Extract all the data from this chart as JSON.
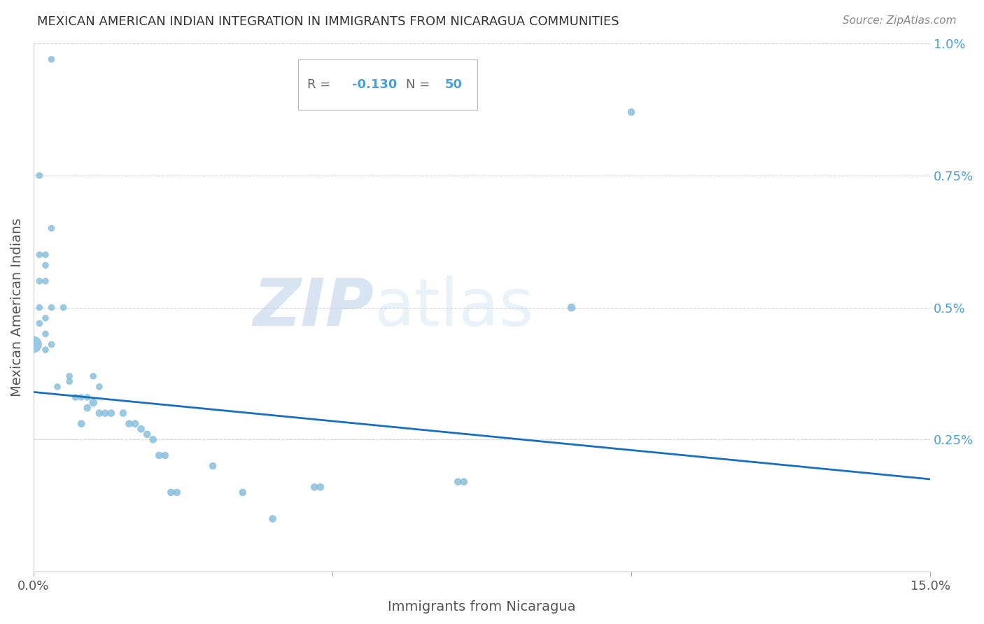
{
  "title": "MEXICAN AMERICAN INDIAN INTEGRATION IN IMMIGRANTS FROM NICARAGUA COMMUNITIES",
  "source": "Source: ZipAtlas.com",
  "xlabel": "Immigrants from Nicaragua",
  "ylabel": "Mexican American Indians",
  "R": -0.13,
  "N": 50,
  "xlim": [
    0.0,
    0.15
  ],
  "ylim": [
    0.0,
    0.01
  ],
  "scatter_color": "#7ab8d9",
  "line_color": "#1a6fbd",
  "watermark_zip": "ZIP",
  "watermark_atlas": "atlas",
  "background_color": "#ffffff",
  "points_x": [
    0.003,
    0.001,
    0.001,
    0.002,
    0.002,
    0.002,
    0.003,
    0.001,
    0.001,
    0.001,
    0.002,
    0.003,
    0.002,
    0.002,
    0.003,
    0.004,
    0.005,
    0.0,
    0.006,
    0.006,
    0.007,
    0.008,
    0.009,
    0.01,
    0.011,
    0.008,
    0.009,
    0.01,
    0.011,
    0.012,
    0.013,
    0.015,
    0.016,
    0.017,
    0.018,
    0.019,
    0.02,
    0.021,
    0.022,
    0.023,
    0.024,
    0.047,
    0.048,
    0.071,
    0.072,
    0.09,
    0.1,
    0.03,
    0.035,
    0.04
  ],
  "points_y": [
    0.0097,
    0.0075,
    0.006,
    0.006,
    0.0058,
    0.0055,
    0.0065,
    0.0055,
    0.005,
    0.0047,
    0.0048,
    0.005,
    0.0045,
    0.0042,
    0.0043,
    0.0035,
    0.005,
    0.0043,
    0.0037,
    0.0036,
    0.0033,
    0.0033,
    0.0033,
    0.0037,
    0.0035,
    0.0028,
    0.0031,
    0.0032,
    0.003,
    0.003,
    0.003,
    0.003,
    0.0028,
    0.0028,
    0.0027,
    0.0026,
    0.0025,
    0.0022,
    0.0022,
    0.0015,
    0.0015,
    0.0016,
    0.0016,
    0.0017,
    0.0017,
    0.005,
    0.0087,
    0.002,
    0.0015,
    0.001
  ],
  "point_sizes": [
    40,
    40,
    40,
    40,
    40,
    40,
    40,
    40,
    40,
    40,
    40,
    40,
    40,
    40,
    40,
    40,
    40,
    280,
    40,
    40,
    40,
    40,
    40,
    40,
    40,
    50,
    50,
    60,
    50,
    50,
    50,
    50,
    50,
    50,
    50,
    50,
    50,
    50,
    50,
    50,
    50,
    50,
    50,
    50,
    50,
    60,
    50,
    50,
    50,
    50
  ]
}
